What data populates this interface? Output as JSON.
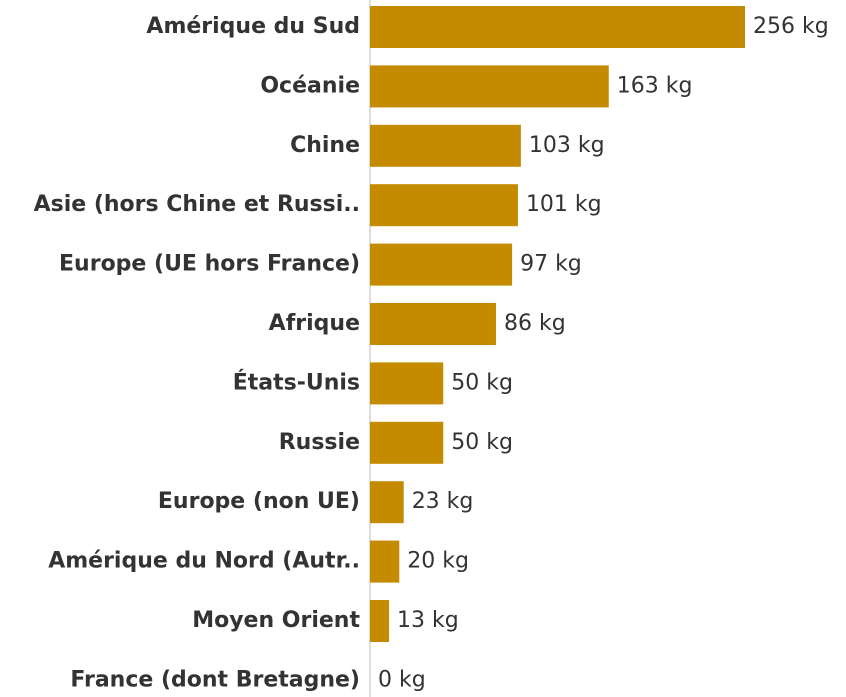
{
  "chart_data": {
    "type": "bar",
    "orientation": "horizontal",
    "categories": [
      "Amérique du Sud",
      "Océanie",
      "Chine",
      "Asie (hors Chine et Russi..",
      "Europe (UE hors France)",
      "Afrique",
      "États-Unis",
      "Russie",
      "Europe (non UE)",
      "Amérique du Nord (Autr..",
      "Moyen Orient",
      "France (dont Bretagne)"
    ],
    "values": [
      256,
      163,
      103,
      101,
      97,
      86,
      50,
      50,
      23,
      20,
      13,
      0
    ],
    "value_labels": [
      "256 kg",
      "163 kg",
      "103 kg",
      "101 kg",
      "97 kg",
      "86 kg",
      "50 kg",
      "50 kg",
      "23 kg",
      "20 kg",
      "13 kg",
      "0 kg"
    ],
    "color": "#c48a00"
  }
}
